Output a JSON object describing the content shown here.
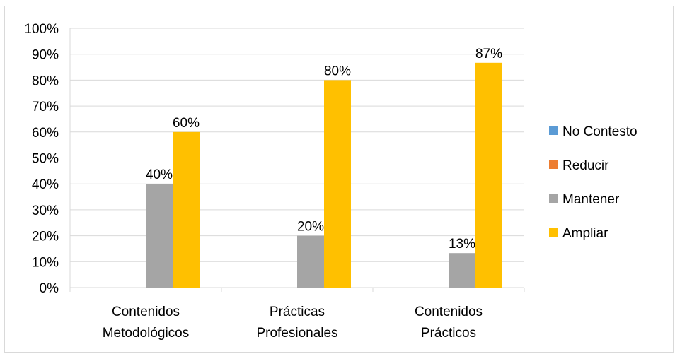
{
  "chart_data": {
    "type": "bar",
    "categories": [
      [
        "Contenidos",
        "Metodológicos"
      ],
      [
        "Prácticas",
        "Profesionales"
      ],
      [
        "Contenidos",
        "Prácticos"
      ]
    ],
    "series": [
      {
        "name": "No Contesto",
        "color": "#5B9BD5",
        "values": [
          0,
          0,
          0
        ],
        "labels": [
          "",
          "",
          ""
        ]
      },
      {
        "name": "Reducir",
        "color": "#ED7D31",
        "values": [
          0,
          0,
          0
        ],
        "labels": [
          "",
          "",
          ""
        ]
      },
      {
        "name": "Mantener",
        "color": "#A5A5A5",
        "values": [
          40,
          20,
          13.3
        ],
        "labels": [
          "40%",
          "20%",
          "13%"
        ]
      },
      {
        "name": "Ampliar",
        "color": "#FFC000",
        "values": [
          60,
          80,
          86.7
        ],
        "labels": [
          "60%",
          "80%",
          "87%"
        ]
      }
    ],
    "ylim": [
      0,
      100
    ],
    "yticks": [
      0,
      10,
      20,
      30,
      40,
      50,
      60,
      70,
      80,
      90,
      100
    ],
    "ytick_labels": [
      "0%",
      "10%",
      "20%",
      "30%",
      "40%",
      "50%",
      "60%",
      "70%",
      "80%",
      "90%",
      "100%"
    ],
    "grid": true,
    "legend_position": "right",
    "title": "",
    "xlabel": "",
    "ylabel": ""
  }
}
